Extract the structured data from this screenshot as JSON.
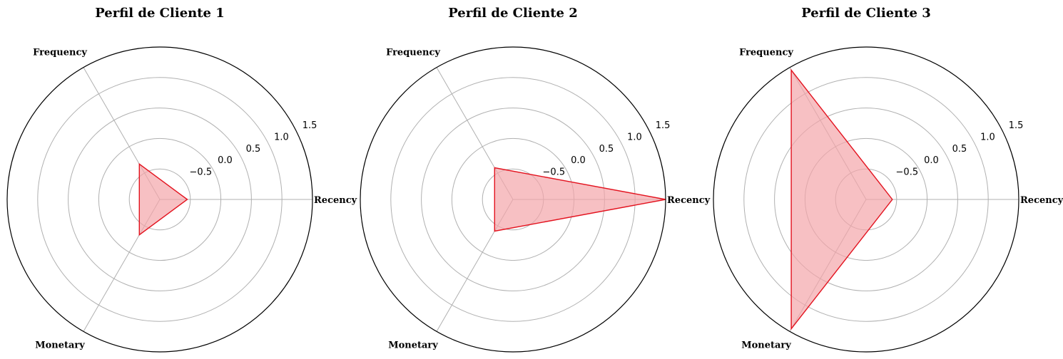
{
  "chart_data": [
    {
      "type": "radar",
      "title": "Perfil de Cliente 1",
      "axes": [
        "Recency",
        "Frequency",
        "Monetary"
      ],
      "rlim": [
        -1.0,
        1.5
      ],
      "rticks": [
        -0.5,
        0.0,
        0.5,
        1.0,
        1.5
      ],
      "rtick_labels": [
        "−0.5",
        "0.0",
        "0.5",
        "1.0",
        "1.5"
      ],
      "grid": true,
      "series": [
        {
          "values": [
            -0.55,
            -0.33,
            -0.33
          ],
          "line_color": "#e3121e",
          "fill_color": "#f4a5aa"
        }
      ]
    },
    {
      "type": "radar",
      "title": "Perfil de Cliente 2",
      "axes": [
        "Recency",
        "Frequency",
        "Monetary"
      ],
      "rlim": [
        -1.0,
        1.5
      ],
      "rticks": [
        -0.5,
        0.0,
        0.5,
        1.0,
        1.5
      ],
      "rtick_labels": [
        "−0.5",
        "0.0",
        "0.5",
        "1.0",
        "1.5"
      ],
      "grid": true,
      "series": [
        {
          "values": [
            1.5,
            -0.4,
            -0.4
          ],
          "line_color": "#e3121e",
          "fill_color": "#f4a5aa"
        }
      ]
    },
    {
      "type": "radar",
      "title": "Perfil de Cliente 3",
      "axes": [
        "Recency",
        "Frequency",
        "Monetary"
      ],
      "rlim": [
        -1.0,
        1.5
      ],
      "rticks": [
        -0.5,
        0.0,
        0.5,
        1.0,
        1.5
      ],
      "rtick_labels": [
        "−0.5",
        "0.0",
        "0.5",
        "1.0",
        "1.5"
      ],
      "grid": true,
      "series": [
        {
          "values": [
            -0.57,
            1.45,
            1.45
          ],
          "line_color": "#e3121e",
          "fill_color": "#f4a5aa"
        }
      ]
    }
  ]
}
